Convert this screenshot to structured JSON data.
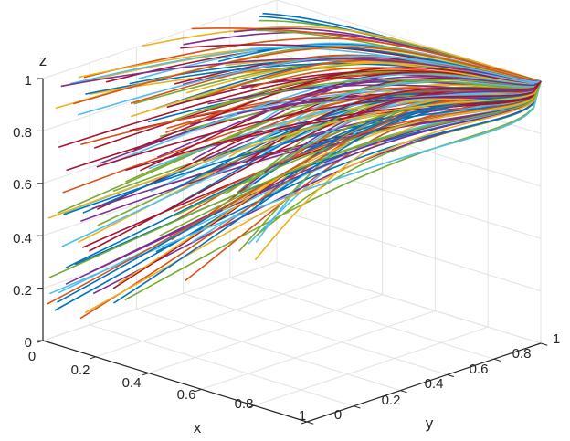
{
  "chart_data": {
    "type": "line3d",
    "title": "",
    "xlabel": "x",
    "ylabel": "y",
    "zlabel": "z",
    "xlim": [
      0,
      1
    ],
    "ylim": [
      0,
      1
    ],
    "zlim": [
      0,
      1
    ],
    "x_ticks": [
      "0",
      "0.2",
      "0.4",
      "0.6",
      "0.8",
      "1"
    ],
    "y_ticks": [
      "0",
      "0.2",
      "0.4",
      "0.6",
      "0.8",
      "1"
    ],
    "z_ticks": [
      "0",
      "0.2",
      "0.4",
      "0.6",
      "0.8",
      "1"
    ],
    "grid": true,
    "series_colors": [
      "#0072BD",
      "#D95319",
      "#EDB120",
      "#7E2F8E",
      "#77AC30",
      "#4DBEEE",
      "#A2142F"
    ],
    "trajectories": {
      "count": 140,
      "note_shape": "each curve starts at x=0 on the back wall at a random (y,z) and converges toward (x=1, y=1, z=1)"
    },
    "series": [
      {
        "start_y": 0.05,
        "start_z": 0.1
      },
      {
        "start_y": 0.55,
        "start_z": 0.22
      },
      {
        "start_y": 0.15,
        "start_z": 0.33
      },
      {
        "start_y": 0.7,
        "start_z": 0.41
      },
      {
        "start_y": 0.3,
        "start_z": 0.48
      },
      {
        "start_y": 0.9,
        "start_z": 0.55
      },
      {
        "start_y": 0.1,
        "start_z": 0.62
      },
      {
        "start_y": 0.45,
        "start_z": 0.7
      },
      {
        "start_y": 0.8,
        "start_z": 0.78
      },
      {
        "start_y": 0.2,
        "start_z": 0.88
      },
      {
        "start_y": 0.6,
        "start_z": 0.95
      },
      {
        "start_y": 0.35,
        "start_z": 0.05
      }
    ]
  }
}
